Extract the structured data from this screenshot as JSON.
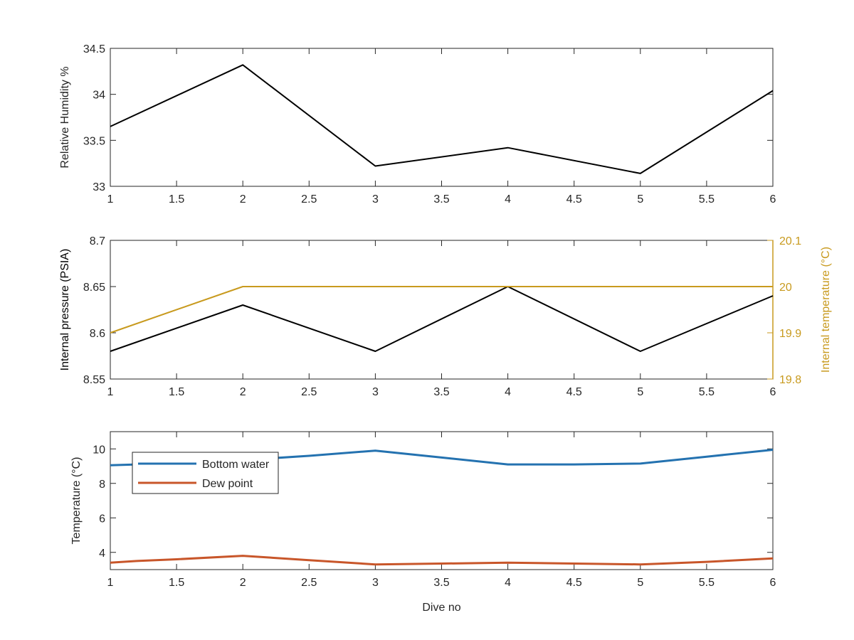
{
  "chart_data": [
    {
      "type": "line",
      "x": [
        1,
        2,
        3,
        4,
        5,
        6
      ],
      "xlim": [
        1,
        6
      ],
      "xticks": [
        "1",
        "1.5",
        "2",
        "2.5",
        "3",
        "3.5",
        "4",
        "4.5",
        "5",
        "5.5",
        "6"
      ],
      "xlabel": "",
      "ylabel": "Relative Humidity %",
      "ylim": [
        33,
        34.5
      ],
      "yticks": [
        "33",
        "33.5",
        "34",
        "34.5"
      ],
      "series": [
        {
          "values": [
            33.65,
            34.32,
            33.22,
            33.42,
            33.14,
            34.04
          ],
          "color": "#000000"
        }
      ]
    },
    {
      "type": "line",
      "x": [
        1,
        2,
        3,
        4,
        5,
        6
      ],
      "xlim": [
        1,
        6
      ],
      "xticks": [
        "1",
        "1.5",
        "2",
        "2.5",
        "3",
        "3.5",
        "4",
        "4.5",
        "5",
        "5.5",
        "6"
      ],
      "xlabel": "",
      "ylabel": "Internal pressure (PSIA)",
      "ylim": [
        8.55,
        8.7
      ],
      "yticks": [
        "8.55",
        "8.6",
        "8.65",
        "8.7"
      ],
      "y2label": "Internal temperature (°C)",
      "y2lim": [
        19.8,
        20.1
      ],
      "y2ticks": [
        "19.8",
        "19.9",
        "20",
        "20.1"
      ],
      "series": [
        {
          "values": [
            8.58,
            8.63,
            8.58,
            8.65,
            8.58,
            8.64
          ],
          "color": "#000000",
          "axis": "left"
        },
        {
          "values": [
            19.9,
            20.0,
            20.0,
            20.0,
            20.0,
            20.0
          ],
          "color": "#c89a1e",
          "axis": "right"
        }
      ]
    },
    {
      "type": "line",
      "x": [
        1,
        1.2,
        1.5,
        2,
        2.5,
        3,
        3.5,
        4,
        4.5,
        5,
        5.5,
        6
      ],
      "xlim": [
        1,
        6
      ],
      "xticks": [
        "1",
        "1.5",
        "2",
        "2.5",
        "3",
        "3.5",
        "4",
        "4.5",
        "5",
        "5.5",
        "6"
      ],
      "xlabel": "Dive no",
      "ylabel": "Temperature (°C)",
      "ylim": [
        3,
        11
      ],
      "yticks": [
        "4",
        "6",
        "8",
        "10"
      ],
      "legend_position": "top-left",
      "series": [
        {
          "name": "Bottom water",
          "values": [
            9.05,
            9.1,
            9.2,
            9.35,
            9.6,
            9.9,
            9.5,
            9.1,
            9.1,
            9.15,
            9.55,
            9.95
          ],
          "color": "#2472b0"
        },
        {
          "name": "Dew point",
          "values": [
            3.4,
            3.5,
            3.6,
            3.8,
            3.55,
            3.3,
            3.35,
            3.4,
            3.35,
            3.3,
            3.45,
            3.65
          ],
          "color": "#c8562a"
        }
      ]
    }
  ]
}
